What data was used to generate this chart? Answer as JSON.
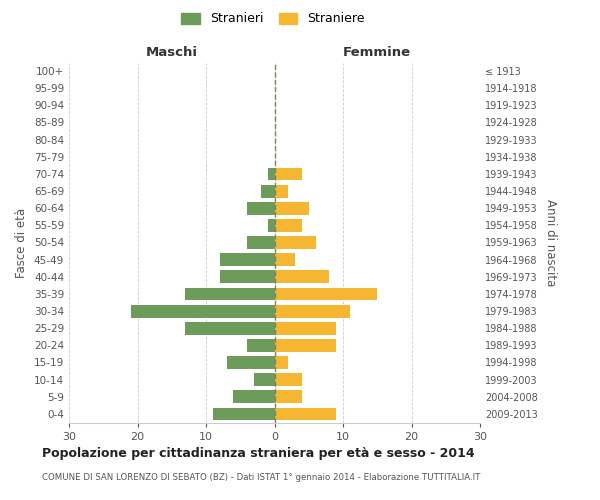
{
  "age_groups": [
    "0-4",
    "5-9",
    "10-14",
    "15-19",
    "20-24",
    "25-29",
    "30-34",
    "35-39",
    "40-44",
    "45-49",
    "50-54",
    "55-59",
    "60-64",
    "65-69",
    "70-74",
    "75-79",
    "80-84",
    "85-89",
    "90-94",
    "95-99",
    "100+"
  ],
  "birth_years": [
    "2009-2013",
    "2004-2008",
    "1999-2003",
    "1994-1998",
    "1989-1993",
    "1984-1988",
    "1979-1983",
    "1974-1978",
    "1969-1973",
    "1964-1968",
    "1959-1963",
    "1954-1958",
    "1949-1953",
    "1944-1948",
    "1939-1943",
    "1934-1938",
    "1929-1933",
    "1924-1928",
    "1919-1923",
    "1914-1918",
    "≤ 1913"
  ],
  "males": [
    9,
    6,
    3,
    7,
    4,
    13,
    21,
    13,
    8,
    8,
    4,
    1,
    4,
    2,
    1,
    0,
    0,
    0,
    0,
    0,
    0
  ],
  "females": [
    9,
    4,
    4,
    2,
    9,
    9,
    11,
    15,
    8,
    3,
    6,
    4,
    5,
    2,
    4,
    0,
    0,
    0,
    0,
    0,
    0
  ],
  "male_color": "#6d9b59",
  "female_color": "#f5b731",
  "background_color": "#ffffff",
  "grid_color": "#cccccc",
  "center_line_color": "#808060",
  "xlim": 30,
  "title": "Popolazione per cittadinanza straniera per età e sesso - 2014",
  "subtitle": "COMUNE DI SAN LORENZO DI SEBATO (BZ) - Dati ISTAT 1° gennaio 2014 - Elaborazione TUTTITALIA.IT",
  "ylabel_left": "Fasce di età",
  "ylabel_right": "Anni di nascita",
  "xlabel_left": "Maschi",
  "xlabel_right": "Femmine",
  "legend_male": "Stranieri",
  "legend_female": "Straniere"
}
